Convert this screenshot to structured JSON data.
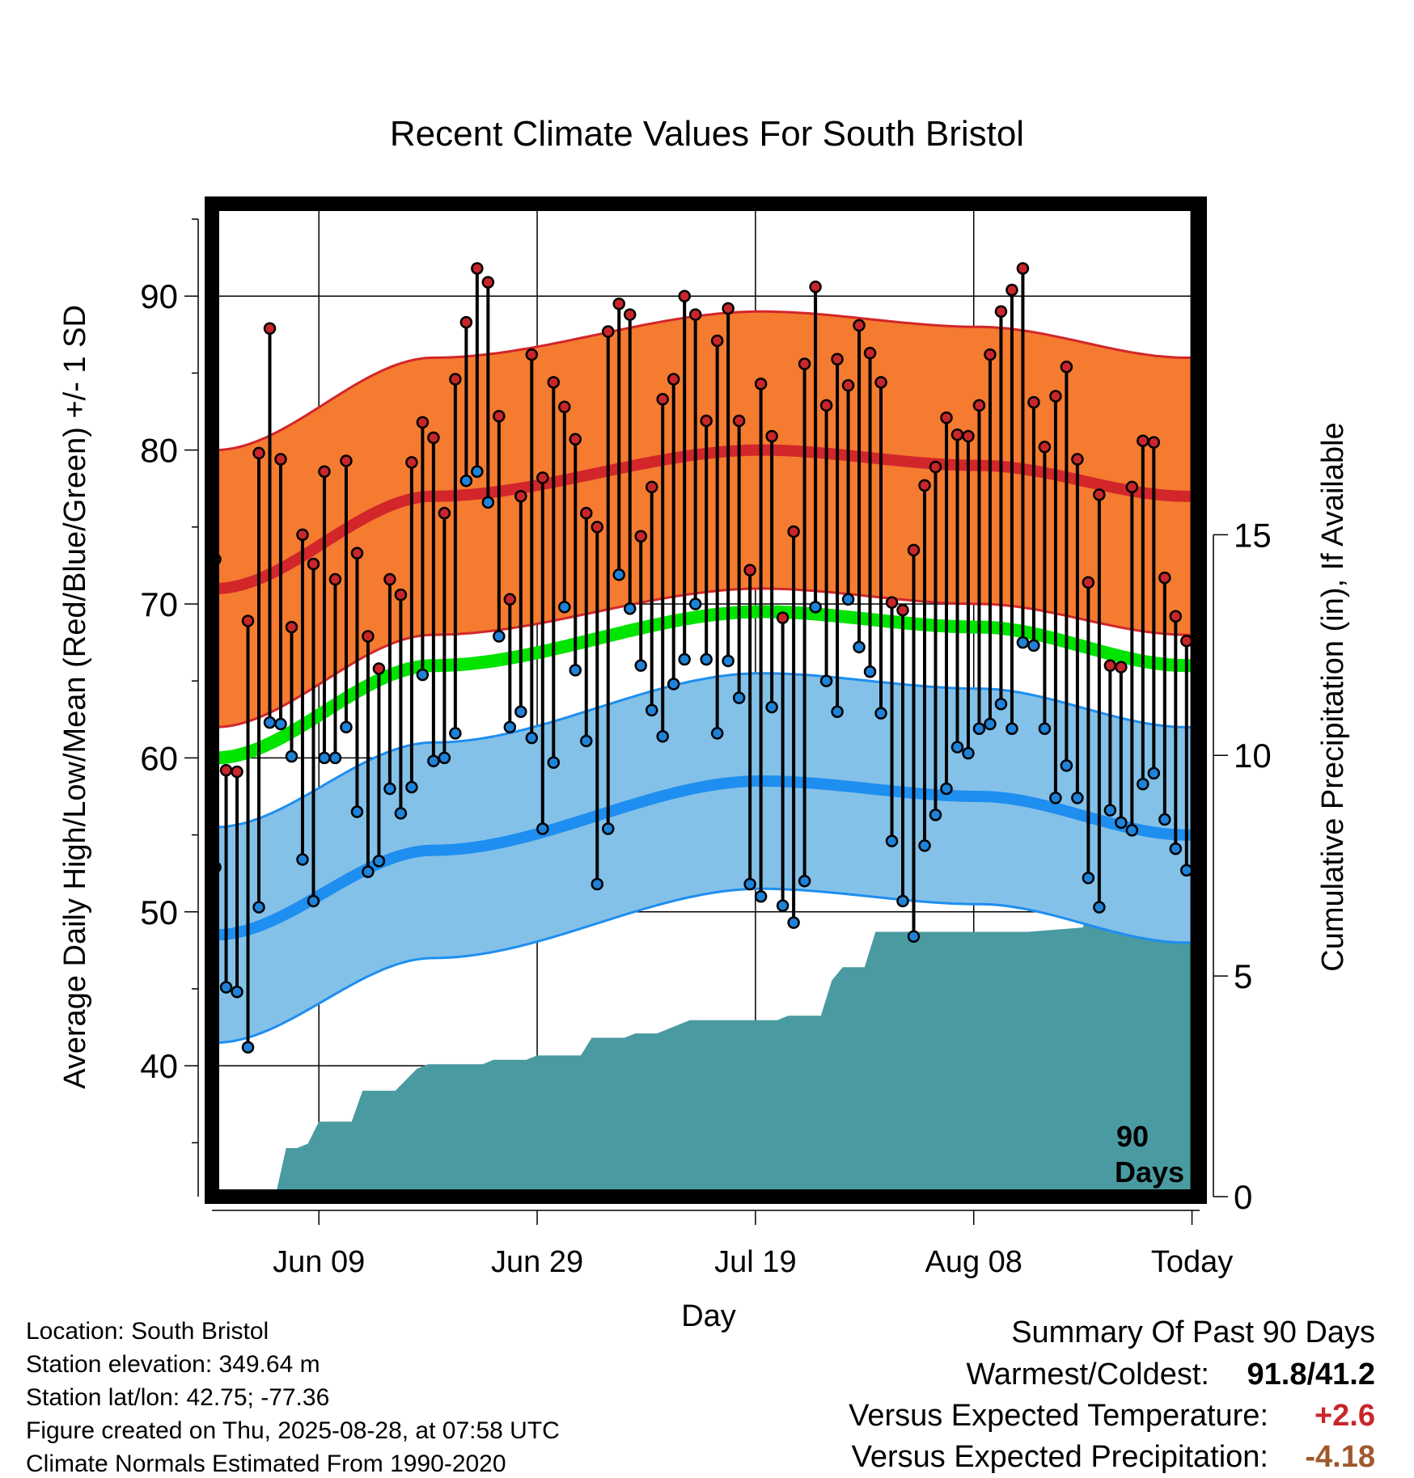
{
  "chart_data": {
    "type": "line",
    "title": "Recent Climate Values For South Bristol",
    "xlabel": "Day",
    "ylabel": "Average Daily High/Low/Mean (Red/Blue/Green) +/- 1 SD",
    "y2label": "Cumulative Precipitation (in), If Available",
    "ylim": [
      31.5,
      96
    ],
    "y2lim": [
      0,
      22.5
    ],
    "xlim": [
      -0.3,
      90.2
    ],
    "yticks": [
      40,
      50,
      60,
      70,
      80,
      90
    ],
    "y2ticks": [
      0,
      5,
      10,
      15
    ],
    "xticks": [
      {
        "day": 9.5,
        "label": "Jun 09"
      },
      {
        "day": 29.5,
        "label": "Jun 29"
      },
      {
        "day": 49.5,
        "label": "Jul 19"
      },
      {
        "day": 69.5,
        "label": "Aug 08"
      },
      {
        "day": 89.5,
        "label": "Today"
      }
    ],
    "grid": true,
    "today_marker": {
      "day": 89.5,
      "label_line1": "90",
      "label_line2": "Days"
    },
    "normals": {
      "anchor_days": [
        0,
        20,
        50,
        70,
        89,
        100
      ],
      "high_mean": [
        71.0,
        77.0,
        80.0,
        79.0,
        77.0,
        74.8
      ],
      "high_sd": 9.0,
      "low_mean": [
        48.5,
        54.0,
        58.5,
        57.5,
        55.0,
        52.5
      ],
      "low_sd": 7.0,
      "avg_mean": [
        60.0,
        66.0,
        69.5,
        68.5,
        66.0,
        63.8
      ],
      "colors": {
        "high_band": "#f47b30",
        "high_line": "#d2262a",
        "high_edge": "#d2262a",
        "low_band": "#84c1e8",
        "low_line": "#1e8ef0",
        "low_edge": "#1e8ef0",
        "avg_line": "#00e400"
      }
    },
    "series": [
      {
        "name": "High",
        "color": "#c8262b",
        "values": [
          72.9,
          59.2,
          59.1,
          68.9,
          79.8,
          87.9,
          79.4,
          68.5,
          74.5,
          72.6,
          78.6,
          71.6,
          79.3,
          73.3,
          67.9,
          65.8,
          71.6,
          70.6,
          79.2,
          81.8,
          80.8,
          75.9,
          84.6,
          88.3,
          91.8,
          90.9,
          82.2,
          70.3,
          77.0,
          86.2,
          78.2,
          84.4,
          82.8,
          80.7,
          75.9,
          75.0,
          87.7,
          89.5,
          88.8,
          74.4,
          77.6,
          83.3,
          84.6,
          90.0,
          88.8,
          81.9,
          87.1,
          89.2,
          81.9,
          72.2,
          84.3,
          80.9,
          69.1,
          74.7,
          85.6,
          90.6,
          82.9,
          85.9,
          84.2,
          88.1,
          86.3,
          84.4,
          70.1,
          69.6,
          73.5,
          77.7,
          78.9,
          82.1,
          81.0,
          80.9,
          82.9,
          86.2,
          89.0,
          90.4,
          91.8,
          83.1,
          80.2,
          83.5,
          85.4,
          79.4,
          71.4,
          77.1,
          66.0,
          65.9,
          77.6,
          80.6,
          80.5,
          71.7,
          69.2,
          67.6
        ]
      },
      {
        "name": "Low",
        "color": "#1e82d8",
        "values": [
          52.9,
          45.1,
          44.8,
          41.2,
          50.3,
          62.3,
          62.2,
          60.1,
          53.4,
          50.7,
          60.0,
          60.0,
          62.0,
          56.5,
          52.6,
          53.3,
          58.0,
          56.4,
          58.1,
          65.4,
          59.8,
          60.0,
          61.6,
          78.0,
          78.6,
          76.6,
          67.9,
          62.0,
          63.0,
          61.3,
          55.4,
          59.7,
          69.8,
          65.7,
          61.1,
          51.8,
          55.4,
          71.9,
          69.7,
          66.0,
          63.1,
          61.4,
          64.8,
          66.4,
          70.0,
          66.4,
          61.6,
          66.3,
          63.9,
          51.8,
          51.0,
          63.3,
          50.4,
          49.3,
          52.0,
          69.8,
          65.0,
          63.0,
          70.3,
          67.2,
          65.6,
          62.9,
          54.6,
          50.7,
          48.4,
          54.3,
          56.3,
          58.0,
          60.7,
          60.3,
          61.9,
          62.2,
          63.5,
          61.9,
          67.5,
          67.3,
          61.9,
          57.4,
          59.5,
          57.4,
          52.2,
          50.3,
          56.6,
          55.8,
          55.3,
          58.3,
          59.0,
          56.0,
          54.1,
          52.7
        ]
      }
    ],
    "precip": {
      "label": "Cumulative Precipitation",
      "color": "#4a9aa2",
      "days": [
        5.5,
        6.5,
        7.5,
        8.5,
        9.5,
        10.5,
        12.5,
        13.5,
        15.5,
        16.5,
        18.5,
        19.5,
        20.5,
        22.5,
        23.5,
        24.5,
        25.5,
        26.5,
        28.5,
        29.5,
        30.5,
        32.5,
        33.5,
        34.5,
        36.5,
        37.5,
        38.5,
        40.5,
        41.5,
        43.5,
        44.5,
        45.5,
        48.5,
        49.5,
        50.5,
        51.5,
        52.5,
        55.5,
        56.5,
        57.5,
        58.5,
        59.5,
        60.5,
        62.5,
        63.5,
        64.5,
        66.5,
        71.5,
        74.5,
        79.5,
        80.5,
        81.5,
        83.5,
        84.5,
        85.5,
        86.5,
        88.5,
        89.5,
        90.5
      ],
      "values": [
        0.0,
        1.1,
        1.1,
        1.2,
        1.7,
        1.7,
        1.7,
        2.4,
        2.4,
        2.4,
        2.9,
        3.0,
        3.0,
        3.0,
        3.0,
        3.0,
        3.1,
        3.1,
        3.1,
        3.2,
        3.2,
        3.2,
        3.2,
        3.6,
        3.6,
        3.6,
        3.7,
        3.7,
        3.8,
        4.0,
        4.0,
        4.0,
        4.0,
        4.0,
        4.0,
        4.0,
        4.1,
        4.1,
        4.9,
        5.2,
        5.2,
        5.2,
        6.0,
        6.0,
        6.0,
        6.0,
        6.0,
        6.0,
        6.0,
        6.1,
        6.9,
        7.0,
        7.0,
        7.4,
        7.5,
        7.5,
        7.5,
        7.5,
        7.5
      ]
    }
  },
  "footer": {
    "location": "Location: South Bristol",
    "elevation": "Station elevation: 349.64 m",
    "latlon": "Station lat/lon: 42.75; -77.36",
    "created": "Figure created on Thu, 2025-08-28, at 07:58 UTC",
    "normals_period": "Climate Normals Estimated From 1990-2020"
  },
  "summary": {
    "title": "Summary Of Past 90 Days",
    "warm_cold_label": "Warmest/Coldest:",
    "warm_cold_value": "91.8/41.2",
    "temp_label": "Versus Expected Temperature:",
    "temp_value": "+2.6",
    "temp_color": "#c8262b",
    "precip_label": "Versus Expected Precipitation:",
    "precip_value": "-4.18",
    "precip_color": "#a0582a"
  }
}
